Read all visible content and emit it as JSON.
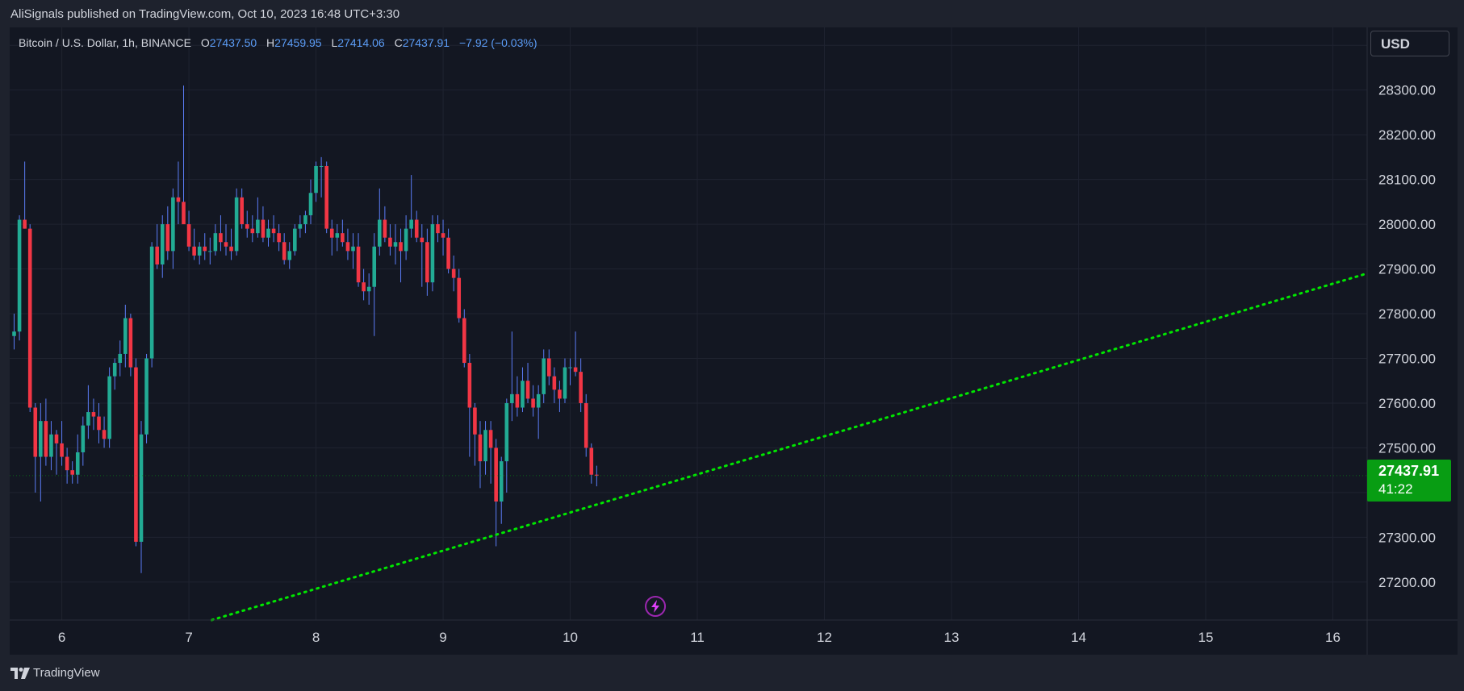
{
  "publisher_line": "AliSignals published on TradingView.com, Oct 10, 2023 16:48 UTC+3:30",
  "legend": {
    "symbol": "Bitcoin / U.S. Dollar, 1h, BINANCE",
    "o_label": "O",
    "o": "27437.50",
    "h_label": "H",
    "h": "27459.95",
    "l_label": "L",
    "l": "27414.06",
    "c_label": "C",
    "c": "27437.91",
    "change": "−7.92 (−0.03%)"
  },
  "currency": "USD",
  "last_price": {
    "price": "27437.91",
    "countdown": "41:22"
  },
  "footer": {
    "brand": "TradingView"
  },
  "icons": {
    "events": "lightning-icon",
    "logo": "tradingview-logo-icon"
  },
  "colors": {
    "up": "#22ab94",
    "down": "#f23645",
    "wick": "#5b7cf6",
    "trendline": "#00e600",
    "badge": "#089d13"
  },
  "chart_data": {
    "type": "candlestick",
    "title": "",
    "xlabel": "",
    "ylabel": "",
    "x_ticks": [
      "6",
      "7",
      "8",
      "9",
      "10",
      "11",
      "12",
      "13",
      "14",
      "15",
      "16"
    ],
    "y_ticks": [
      "28300.00",
      "28200.00",
      "28100.00",
      "28000.00",
      "27900.00",
      "27800.00",
      "27700.00",
      "27600.00",
      "27500.00",
      "27300.00",
      "27200.00"
    ],
    "ylim": [
      27115,
      28440
    ],
    "xlim": [
      5.59,
      16.27
    ],
    "grid": true,
    "candle_day_start": 5.625,
    "candle_hours": 1,
    "ohlc": [
      [
        27750,
        27800,
        27720,
        27760
      ],
      [
        27760,
        28020,
        27740,
        28010
      ],
      [
        28010,
        28140,
        27990,
        27990
      ],
      [
        27990,
        28000,
        27580,
        27590
      ],
      [
        27590,
        27600,
        27400,
        27480
      ],
      [
        27480,
        27600,
        27380,
        27560
      ],
      [
        27560,
        27610,
        27460,
        27480
      ],
      [
        27480,
        27560,
        27450,
        27530
      ],
      [
        27530,
        27540,
        27440,
        27510
      ],
      [
        27510,
        27560,
        27460,
        27480
      ],
      [
        27480,
        27500,
        27420,
        27450
      ],
      [
        27450,
        27470,
        27420,
        27440
      ],
      [
        27440,
        27530,
        27420,
        27490
      ],
      [
        27490,
        27570,
        27460,
        27550
      ],
      [
        27550,
        27640,
        27520,
        27580
      ],
      [
        27580,
        27610,
        27540,
        27570
      ],
      [
        27570,
        27600,
        27510,
        27540
      ],
      [
        27540,
        27570,
        27500,
        27520
      ],
      [
        27520,
        27680,
        27500,
        27660
      ],
      [
        27660,
        27700,
        27630,
        27690
      ],
      [
        27690,
        27740,
        27660,
        27710
      ],
      [
        27710,
        27820,
        27680,
        27790
      ],
      [
        27790,
        27800,
        27660,
        27680
      ],
      [
        27680,
        27700,
        27280,
        27290
      ],
      [
        27290,
        27560,
        27220,
        27530
      ],
      [
        27530,
        27710,
        27510,
        27700
      ],
      [
        27700,
        27960,
        27680,
        27950
      ],
      [
        27950,
        28000,
        27900,
        27910
      ],
      [
        27910,
        28020,
        27880,
        28000
      ],
      [
        28000,
        28040,
        27920,
        27940
      ],
      [
        27940,
        28080,
        27900,
        28060
      ],
      [
        28060,
        28140,
        28000,
        28050
      ],
      [
        28050,
        28310,
        28010,
        28000
      ],
      [
        28000,
        28030,
        27940,
        27950
      ],
      [
        27950,
        27990,
        27920,
        27930
      ],
      [
        27930,
        27960,
        27910,
        27950
      ],
      [
        27950,
        27980,
        27920,
        27940
      ],
      [
        27940,
        27970,
        27910,
        27940
      ],
      [
        27940,
        28000,
        27930,
        27980
      ],
      [
        27980,
        28020,
        27940,
        27960
      ],
      [
        27960,
        28000,
        27930,
        27950
      ],
      [
        27950,
        27990,
        27920,
        27940
      ],
      [
        27940,
        28080,
        27930,
        28060
      ],
      [
        28060,
        28080,
        27990,
        28000
      ],
      [
        28000,
        28030,
        27970,
        27990
      ],
      [
        27990,
        28020,
        27960,
        27980
      ],
      [
        27980,
        28060,
        27970,
        28010
      ],
      [
        28010,
        28040,
        27960,
        27970
      ],
      [
        27970,
        28010,
        27950,
        27990
      ],
      [
        27990,
        28020,
        27960,
        27980
      ],
      [
        27980,
        28000,
        27940,
        27960
      ],
      [
        27960,
        27980,
        27910,
        27920
      ],
      [
        27920,
        27960,
        27900,
        27940
      ],
      [
        27940,
        28000,
        27930,
        27990
      ],
      [
        27990,
        28020,
        27970,
        28000
      ],
      [
        28000,
        28030,
        27980,
        28020
      ],
      [
        28020,
        28100,
        28000,
        28070
      ],
      [
        28070,
        28140,
        28050,
        28130
      ],
      [
        28130,
        28150,
        28060,
        28130
      ],
      [
        28130,
        28140,
        27980,
        27990
      ],
      [
        27990,
        28010,
        27930,
        27970
      ],
      [
        27970,
        28000,
        27940,
        27980
      ],
      [
        27980,
        28010,
        27950,
        27960
      ],
      [
        27960,
        27990,
        27920,
        27940
      ],
      [
        27940,
        27980,
        27900,
        27950
      ],
      [
        27950,
        27980,
        27860,
        27870
      ],
      [
        27870,
        27900,
        27830,
        27850
      ],
      [
        27850,
        27890,
        27820,
        27860
      ],
      [
        27860,
        27980,
        27750,
        27950
      ],
      [
        27950,
        28080,
        27930,
        28010
      ],
      [
        28010,
        28040,
        27960,
        27970
      ],
      [
        27970,
        28000,
        27930,
        27950
      ],
      [
        27950,
        28000,
        27910,
        27960
      ],
      [
        27960,
        27990,
        27870,
        27940
      ],
      [
        27940,
        28020,
        27920,
        27990
      ],
      [
        27990,
        28110,
        27970,
        28010
      ],
      [
        28010,
        28030,
        27960,
        27970
      ],
      [
        27970,
        28000,
        27860,
        27960
      ],
      [
        27960,
        27990,
        27840,
        27870
      ],
      [
        27870,
        28020,
        27850,
        28000
      ],
      [
        28000,
        28020,
        27960,
        27980
      ],
      [
        27980,
        28010,
        27930,
        27970
      ],
      [
        27970,
        27990,
        27890,
        27900
      ],
      [
        27900,
        27930,
        27850,
        27880
      ],
      [
        27880,
        27900,
        27780,
        27790
      ],
      [
        27790,
        27810,
        27680,
        27690
      ],
      [
        27690,
        27710,
        27480,
        27590
      ],
      [
        27590,
        27600,
        27460,
        27530
      ],
      [
        27530,
        27560,
        27410,
        27470
      ],
      [
        27470,
        27560,
        27440,
        27540
      ],
      [
        27540,
        27560,
        27420,
        27500
      ],
      [
        27500,
        27520,
        27280,
        27380
      ],
      [
        27380,
        27480,
        27330,
        27470
      ],
      [
        27470,
        27610,
        27400,
        27600
      ],
      [
        27600,
        27760,
        27560,
        27620
      ],
      [
        27620,
        27660,
        27570,
        27590
      ],
      [
        27590,
        27680,
        27580,
        27650
      ],
      [
        27650,
        27690,
        27600,
        27610
      ],
      [
        27610,
        27640,
        27570,
        27590
      ],
      [
        27590,
        27640,
        27520,
        27620
      ],
      [
        27620,
        27720,
        27600,
        27700
      ],
      [
        27700,
        27720,
        27640,
        27660
      ],
      [
        27660,
        27680,
        27600,
        27630
      ],
      [
        27630,
        27650,
        27580,
        27610
      ],
      [
        27610,
        27700,
        27600,
        27680
      ],
      [
        27680,
        27700,
        27640,
        27680
      ],
      [
        27680,
        27760,
        27660,
        27670
      ],
      [
        27670,
        27700,
        27580,
        27600
      ],
      [
        27600,
        27620,
        27480,
        27500
      ],
      [
        27500,
        27510,
        27420,
        27440
      ],
      [
        27440,
        27460,
        27414,
        27437.91
      ]
    ],
    "trendline": {
      "style": "dotted",
      "points": [
        [
          7.18,
          27115
        ],
        [
          16.27,
          27890
        ]
      ]
    },
    "last_price": 27437.91,
    "event_marker_x": 10.67
  }
}
